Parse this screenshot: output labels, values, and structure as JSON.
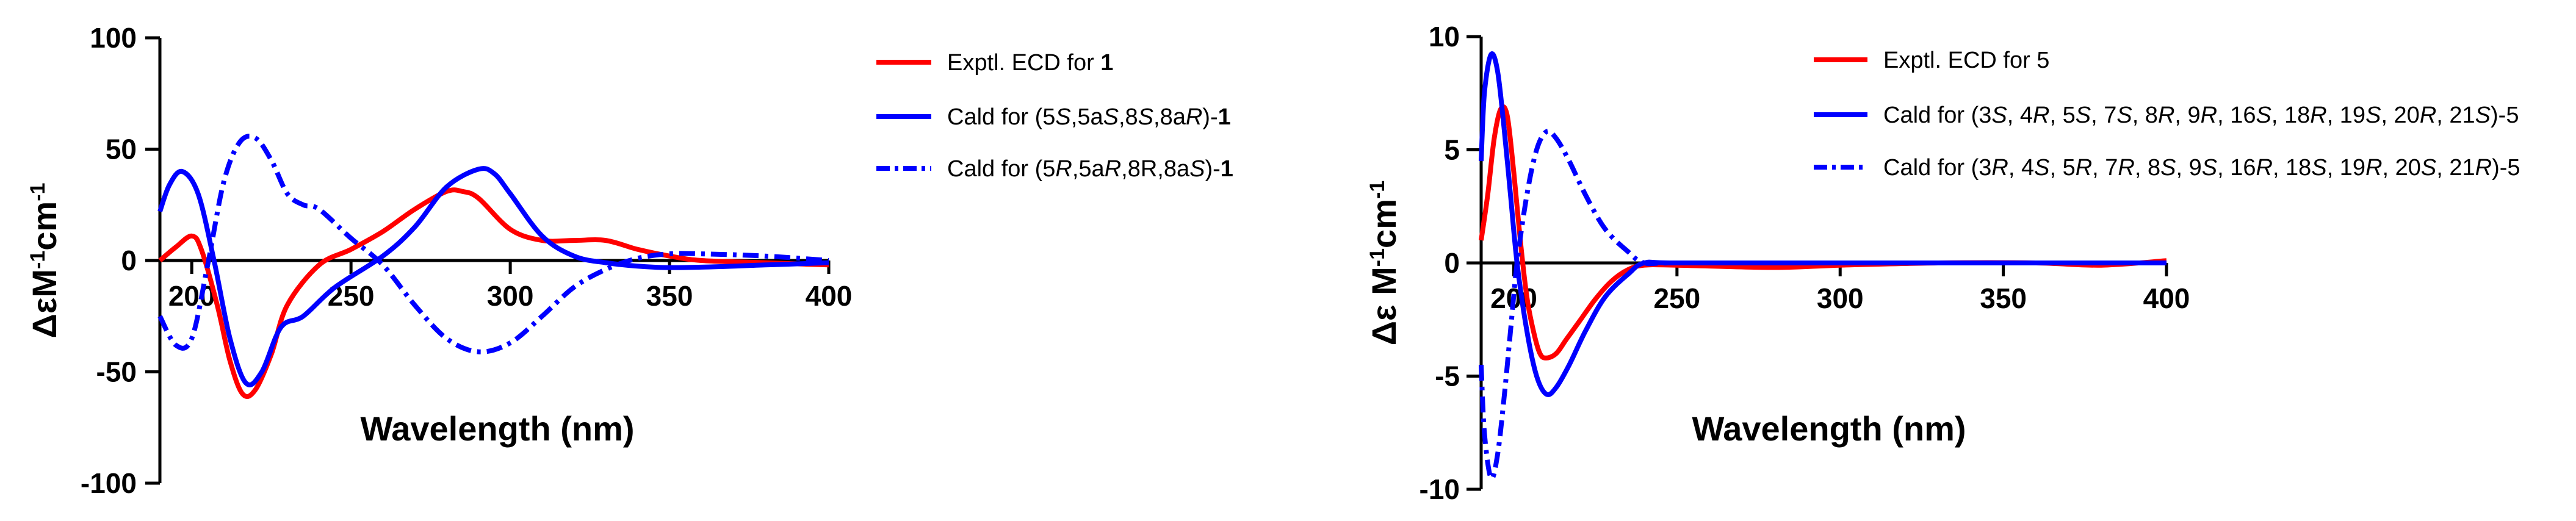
{
  "chart_data": [
    {
      "type": "line",
      "xlabel": "Wavelength (nm)",
      "ylabel": {
        "base": "ΔεM",
        "sup1": "-1",
        "mid": "cm",
        "sup2": "-1"
      },
      "xlim": [
        190,
        400
      ],
      "ylim": [
        -100,
        100
      ],
      "x_ticks": [
        "200",
        "250",
        "300",
        "350",
        "400"
      ],
      "y_ticks": [
        "100",
        "50",
        "0",
        "-50",
        "-100"
      ],
      "grid": false,
      "legend_position": "right",
      "series": [
        {
          "name": "Exptl. ECD for 1",
          "legend_parts": [
            {
              "t": "Exptl. ECD for "
            },
            {
              "t": "1",
              "b": true
            }
          ],
          "color": "#ff0000",
          "dash": "solid",
          "x": [
            190,
            195,
            200,
            203,
            208,
            212,
            216,
            220,
            225,
            230,
            240,
            250,
            260,
            270,
            280,
            285,
            290,
            300,
            310,
            320,
            330,
            340,
            350,
            360,
            380,
            400
          ],
          "y": [
            0,
            6,
            11,
            5,
            -20,
            -45,
            -60,
            -58,
            -42,
            -20,
            -2,
            5,
            13,
            23,
            31,
            31,
            28,
            14,
            9,
            9,
            9,
            5,
            2,
            0,
            -1,
            -2
          ]
        },
        {
          "name": "Cald for (5S,5aS,8S,8aR)-1",
          "legend_parts": [
            {
              "t": "Cald for (5"
            },
            {
              "t": "S",
              "i": true
            },
            {
              "t": ",5a"
            },
            {
              "t": "S",
              "i": true
            },
            {
              "t": ",8"
            },
            {
              "t": "S",
              "i": true
            },
            {
              "t": ",8a"
            },
            {
              "t": "R",
              "i": true
            },
            {
              "t": ")-"
            },
            {
              "t": "1",
              "b": true
            }
          ],
          "color": "#0000ff",
          "dash": "solid",
          "x": [
            190,
            193,
            197,
            202,
            207,
            212,
            217,
            222,
            228,
            235,
            245,
            260,
            270,
            280,
            290,
            295,
            300,
            310,
            320,
            330,
            345,
            360,
            380,
            400
          ],
          "y": [
            22,
            34,
            40,
            30,
            0,
            -35,
            -55,
            -50,
            -30,
            -25,
            -12,
            2,
            15,
            33,
            41,
            39,
            30,
            11,
            2,
            -1,
            -3,
            -3,
            -2,
            -1
          ]
        },
        {
          "name": "Cald for (5R,5aR,8R,8aS)-1",
          "legend_parts": [
            {
              "t": "Cald for (5"
            },
            {
              "t": "R",
              "i": true
            },
            {
              "t": ",5a"
            },
            {
              "t": "R",
              "i": true
            },
            {
              "t": ",8R,8a"
            },
            {
              "t": "S",
              "i": true
            },
            {
              "t": ")-"
            },
            {
              "t": "1",
              "b": true
            }
          ],
          "color": "#0000ff",
          "dash": "dashdot",
          "x": [
            190,
            195,
            200,
            205,
            210,
            215,
            220,
            225,
            230,
            235,
            240,
            250,
            260,
            270,
            280,
            290,
            300,
            310,
            320,
            330,
            340,
            350,
            360,
            380,
            400
          ],
          "y": [
            -25,
            -38,
            -35,
            -2,
            35,
            53,
            55,
            45,
            30,
            25,
            23,
            10,
            -2,
            -20,
            -35,
            -41,
            -37,
            -25,
            -12,
            -4,
            1,
            3,
            3,
            2,
            0
          ]
        }
      ]
    },
    {
      "type": "line",
      "xlabel": "Wavelength (nm)",
      "ylabel": {
        "base": "Δε M",
        "sup1": "-1",
        "mid": "cm",
        "sup2": "-1"
      },
      "xlim": [
        190,
        400
      ],
      "ylim": [
        -10,
        10
      ],
      "x_ticks": [
        "200",
        "250",
        "300",
        "350",
        "400"
      ],
      "y_ticks": [
        "10",
        "5",
        "0",
        "-5",
        "-10"
      ],
      "grid": false,
      "legend_position": "right",
      "series": [
        {
          "name": "Exptl. ECD for 5",
          "legend_parts": [
            {
              "t": "Exptl. ECD for 5"
            }
          ],
          "color": "#ff0000",
          "dash": "solid",
          "x": [
            190,
            192,
            194,
            196,
            198,
            200,
            202,
            204,
            206,
            208,
            210,
            213,
            216,
            220,
            225,
            230,
            235,
            240,
            250,
            280,
            300,
            330,
            360,
            380,
            400
          ],
          "y": [
            1,
            3,
            5.5,
            6.8,
            6.5,
            4,
            1,
            -1.5,
            -3,
            -4,
            -4.2,
            -4,
            -3.4,
            -2.6,
            -1.6,
            -0.8,
            -0.3,
            -0.1,
            -0.1,
            -0.2,
            -0.1,
            0,
            0,
            -0.1,
            0.1
          ]
        },
        {
          "name": "Cald for (3S, 4R, 5S, 7S, 8R, 9R, 16S, 18R, 19S, 20R, 21S)-5",
          "legend_parts": [
            {
              "t": "Cald for (3"
            },
            {
              "t": "S",
              "i": true
            },
            {
              "t": ", 4"
            },
            {
              "t": "R",
              "i": true
            },
            {
              "t": ", 5"
            },
            {
              "t": "S",
              "i": true
            },
            {
              "t": ", 7"
            },
            {
              "t": "S",
              "i": true
            },
            {
              "t": ", 8"
            },
            {
              "t": "R",
              "i": true
            },
            {
              "t": ", 9"
            },
            {
              "t": "R",
              "i": true
            },
            {
              "t": ", 16"
            },
            {
              "t": "S",
              "i": true
            },
            {
              "t": ", 18"
            },
            {
              "t": "R",
              "i": true
            },
            {
              "t": ", 19"
            },
            {
              "t": "S",
              "i": true
            },
            {
              "t": ", 20"
            },
            {
              "t": "R",
              "i": true
            },
            {
              "t": ", 21"
            },
            {
              "t": "S",
              "i": true
            },
            {
              "t": ")-5"
            }
          ],
          "color": "#0000ff",
          "dash": "solid",
          "x": [
            190,
            191,
            193,
            195,
            197,
            199,
            201,
            204,
            207,
            210,
            213,
            217,
            222,
            228,
            235,
            240,
            250,
            300,
            350,
            400
          ],
          "y": [
            4.5,
            7.5,
            9.2,
            8.5,
            6,
            3,
            0,
            -3,
            -5,
            -5.8,
            -5.5,
            -4.5,
            -3,
            -1.5,
            -0.5,
            0,
            0,
            0,
            0,
            0
          ]
        },
        {
          "name": "Cald for (3R, 4S, 5R, 7R, 8S, 9S, 16R, 18S, 19R, 20S, 21R)-5",
          "legend_parts": [
            {
              "t": "Cald for (3"
            },
            {
              "t": "R",
              "i": true
            },
            {
              "t": ", 4"
            },
            {
              "t": "S",
              "i": true
            },
            {
              "t": ", 5"
            },
            {
              "t": "R",
              "i": true
            },
            {
              "t": ", 7"
            },
            {
              "t": "R",
              "i": true
            },
            {
              "t": ", 8"
            },
            {
              "t": "S",
              "i": true
            },
            {
              "t": ", 9"
            },
            {
              "t": "S",
              "i": true
            },
            {
              "t": ", 16"
            },
            {
              "t": "R",
              "i": true
            },
            {
              "t": ", 18"
            },
            {
              "t": "S",
              "i": true
            },
            {
              "t": ", 19"
            },
            {
              "t": "R",
              "i": true
            },
            {
              "t": ", 20"
            },
            {
              "t": "S",
              "i": true
            },
            {
              "t": ", 21"
            },
            {
              "t": "R",
              "i": true
            },
            {
              "t": ")-5"
            }
          ],
          "color": "#0000ff",
          "dash": "dashdot",
          "x": [
            190,
            191,
            193,
            195,
            197,
            199,
            201,
            204,
            207,
            210,
            213,
            217,
            222,
            228,
            235,
            240,
            250,
            300,
            350,
            400
          ],
          "y": [
            -4.5,
            -7.5,
            -9.5,
            -8.5,
            -6,
            -3,
            0,
            3,
            5,
            5.8,
            5.5,
            4.5,
            3,
            1.5,
            0.5,
            0,
            0,
            0,
            0,
            0
          ]
        }
      ]
    }
  ]
}
